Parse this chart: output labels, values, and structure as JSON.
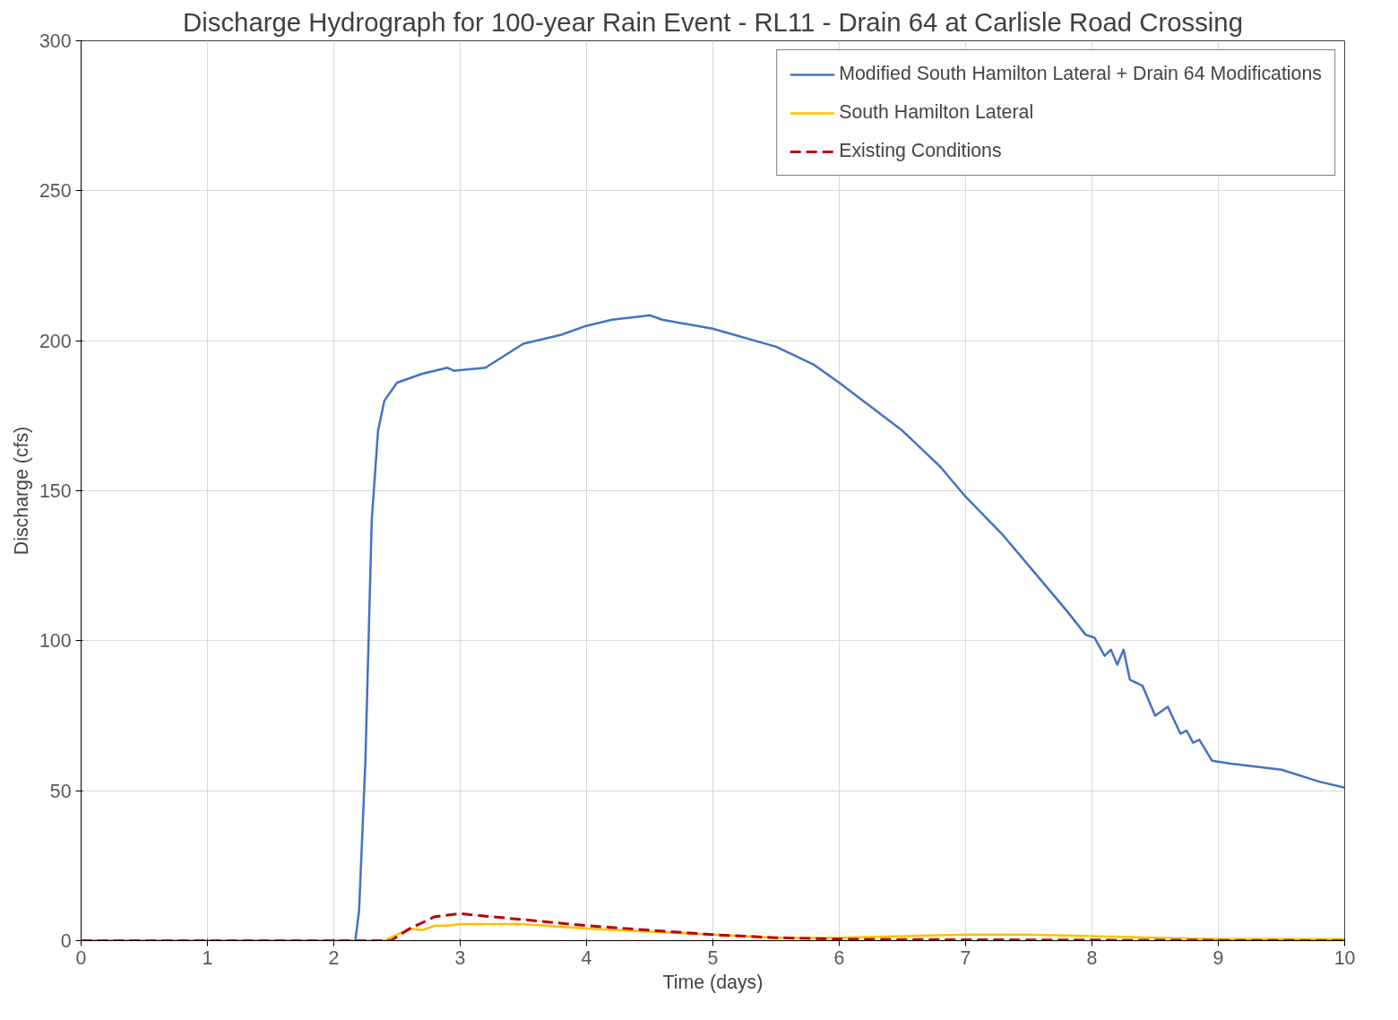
{
  "chart_data": {
    "type": "line",
    "title": "Discharge Hydrograph for 100-year Rain Event - RL11 - Drain 64 at Carlisle Road Crossing",
    "xlabel": "Time (days)",
    "ylabel": "Discharge (cfs)",
    "xlim": [
      0,
      10
    ],
    "ylim": [
      0,
      300
    ],
    "xticks": [
      0,
      1,
      2,
      3,
      4,
      5,
      6,
      7,
      8,
      9,
      10
    ],
    "yticks": [
      0,
      50,
      100,
      150,
      200,
      250,
      300
    ],
    "grid": true,
    "legend": "top right",
    "series": [
      {
        "name": "Modified South Hamilton Lateral + Drain 64 Modifications",
        "color": "#4472c4",
        "line_style": "solid",
        "x": [
          0,
          2.17,
          2.2,
          2.25,
          2.3,
          2.35,
          2.4,
          2.5,
          2.7,
          2.9,
          2.95,
          3.2,
          3.5,
          3.8,
          4.0,
          4.2,
          4.4,
          4.5,
          4.6,
          5.0,
          5.5,
          5.8,
          6.0,
          6.5,
          6.8,
          7.0,
          7.3,
          7.6,
          7.8,
          7.95,
          8.02,
          8.1,
          8.15,
          8.2,
          8.25,
          8.3,
          8.4,
          8.5,
          8.6,
          8.7,
          8.75,
          8.8,
          8.85,
          8.95,
          9.1,
          9.5,
          9.8,
          10
        ],
        "values": [
          0,
          0,
          10,
          60,
          140,
          170,
          180,
          186,
          189,
          191,
          190,
          191,
          199,
          202,
          205,
          207,
          208,
          208.5,
          207,
          204,
          198,
          192,
          186,
          170,
          158,
          148,
          135,
          120,
          110,
          102,
          101,
          95,
          97,
          92,
          97,
          87,
          85,
          75,
          78,
          69,
          70,
          66,
          67,
          60,
          59,
          57,
          53,
          51
        ]
      },
      {
        "name": "South Hamilton Lateral",
        "color": "#ffc000",
        "line_style": "solid",
        "x": [
          0,
          2.4,
          2.6,
          2.7,
          2.8,
          2.9,
          3.0,
          3.5,
          4.0,
          4.5,
          5.0,
          5.5,
          6.0,
          6.5,
          7.0,
          7.5,
          8.0,
          8.5,
          9.0,
          10
        ],
        "values": [
          0,
          0,
          4,
          3.5,
          5,
          5,
          5.5,
          5.5,
          4,
          3,
          2,
          1,
          1,
          1.5,
          2,
          2,
          1.5,
          1,
          0.5,
          0.5
        ]
      },
      {
        "name": "Existing Conditions",
        "color": "#c00000",
        "line_style": "dashed",
        "x": [
          0,
          2.45,
          2.6,
          2.8,
          3.0,
          3.5,
          4.0,
          4.5,
          5.0,
          5.5,
          6.0,
          7.0,
          8.0,
          10
        ],
        "values": [
          0,
          0,
          4,
          8,
          9,
          7,
          5,
          3.5,
          2,
          1,
          0.5,
          0.3,
          0.2,
          0
        ]
      }
    ]
  }
}
